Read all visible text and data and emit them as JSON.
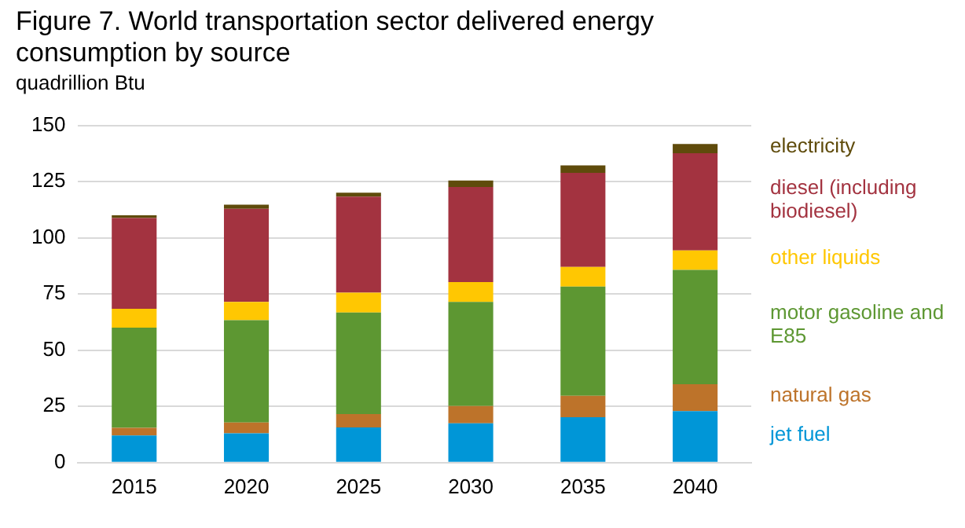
{
  "chart_data": {
    "type": "bar",
    "title": "Figure 7. World transportation sector delivered energy consumption by source",
    "ylabel": "quadrillion Btu",
    "categories": [
      "2015",
      "2020",
      "2025",
      "2030",
      "2035",
      "2040"
    ],
    "stacked": true,
    "series": [
      {
        "name": "jet fuel",
        "color": "#0096d7",
        "values": [
          12.1,
          13,
          15.7,
          17.5,
          20.2,
          22.9
        ]
      },
      {
        "name": "natural gas",
        "color": "#bd732a",
        "values": [
          3.4,
          4.8,
          5.9,
          7.7,
          9.5,
          12
        ]
      },
      {
        "name": "motor gasoline and E85",
        "color": "#5d9732",
        "values": [
          44.5,
          45.6,
          45.2,
          46.3,
          48.6,
          50.8
        ]
      },
      {
        "name": "other liquids",
        "color": "#ffc702",
        "values": [
          8.4,
          8.1,
          8.8,
          8.8,
          8.7,
          8.7
        ]
      },
      {
        "name": "diesel (including biodiesel)",
        "color": "#a33340",
        "values": [
          40.4,
          41.4,
          42.7,
          42.3,
          41.9,
          43.2
        ]
      },
      {
        "name": "electricity",
        "color": "#5f4b0b",
        "values": [
          1.2,
          1.8,
          1.8,
          2.9,
          3.3,
          4.1
        ]
      }
    ],
    "ylim": [
      0,
      150
    ],
    "yticks": [
      0,
      25,
      50,
      75,
      100,
      125,
      150
    ],
    "grid": "y",
    "legend": "right"
  }
}
